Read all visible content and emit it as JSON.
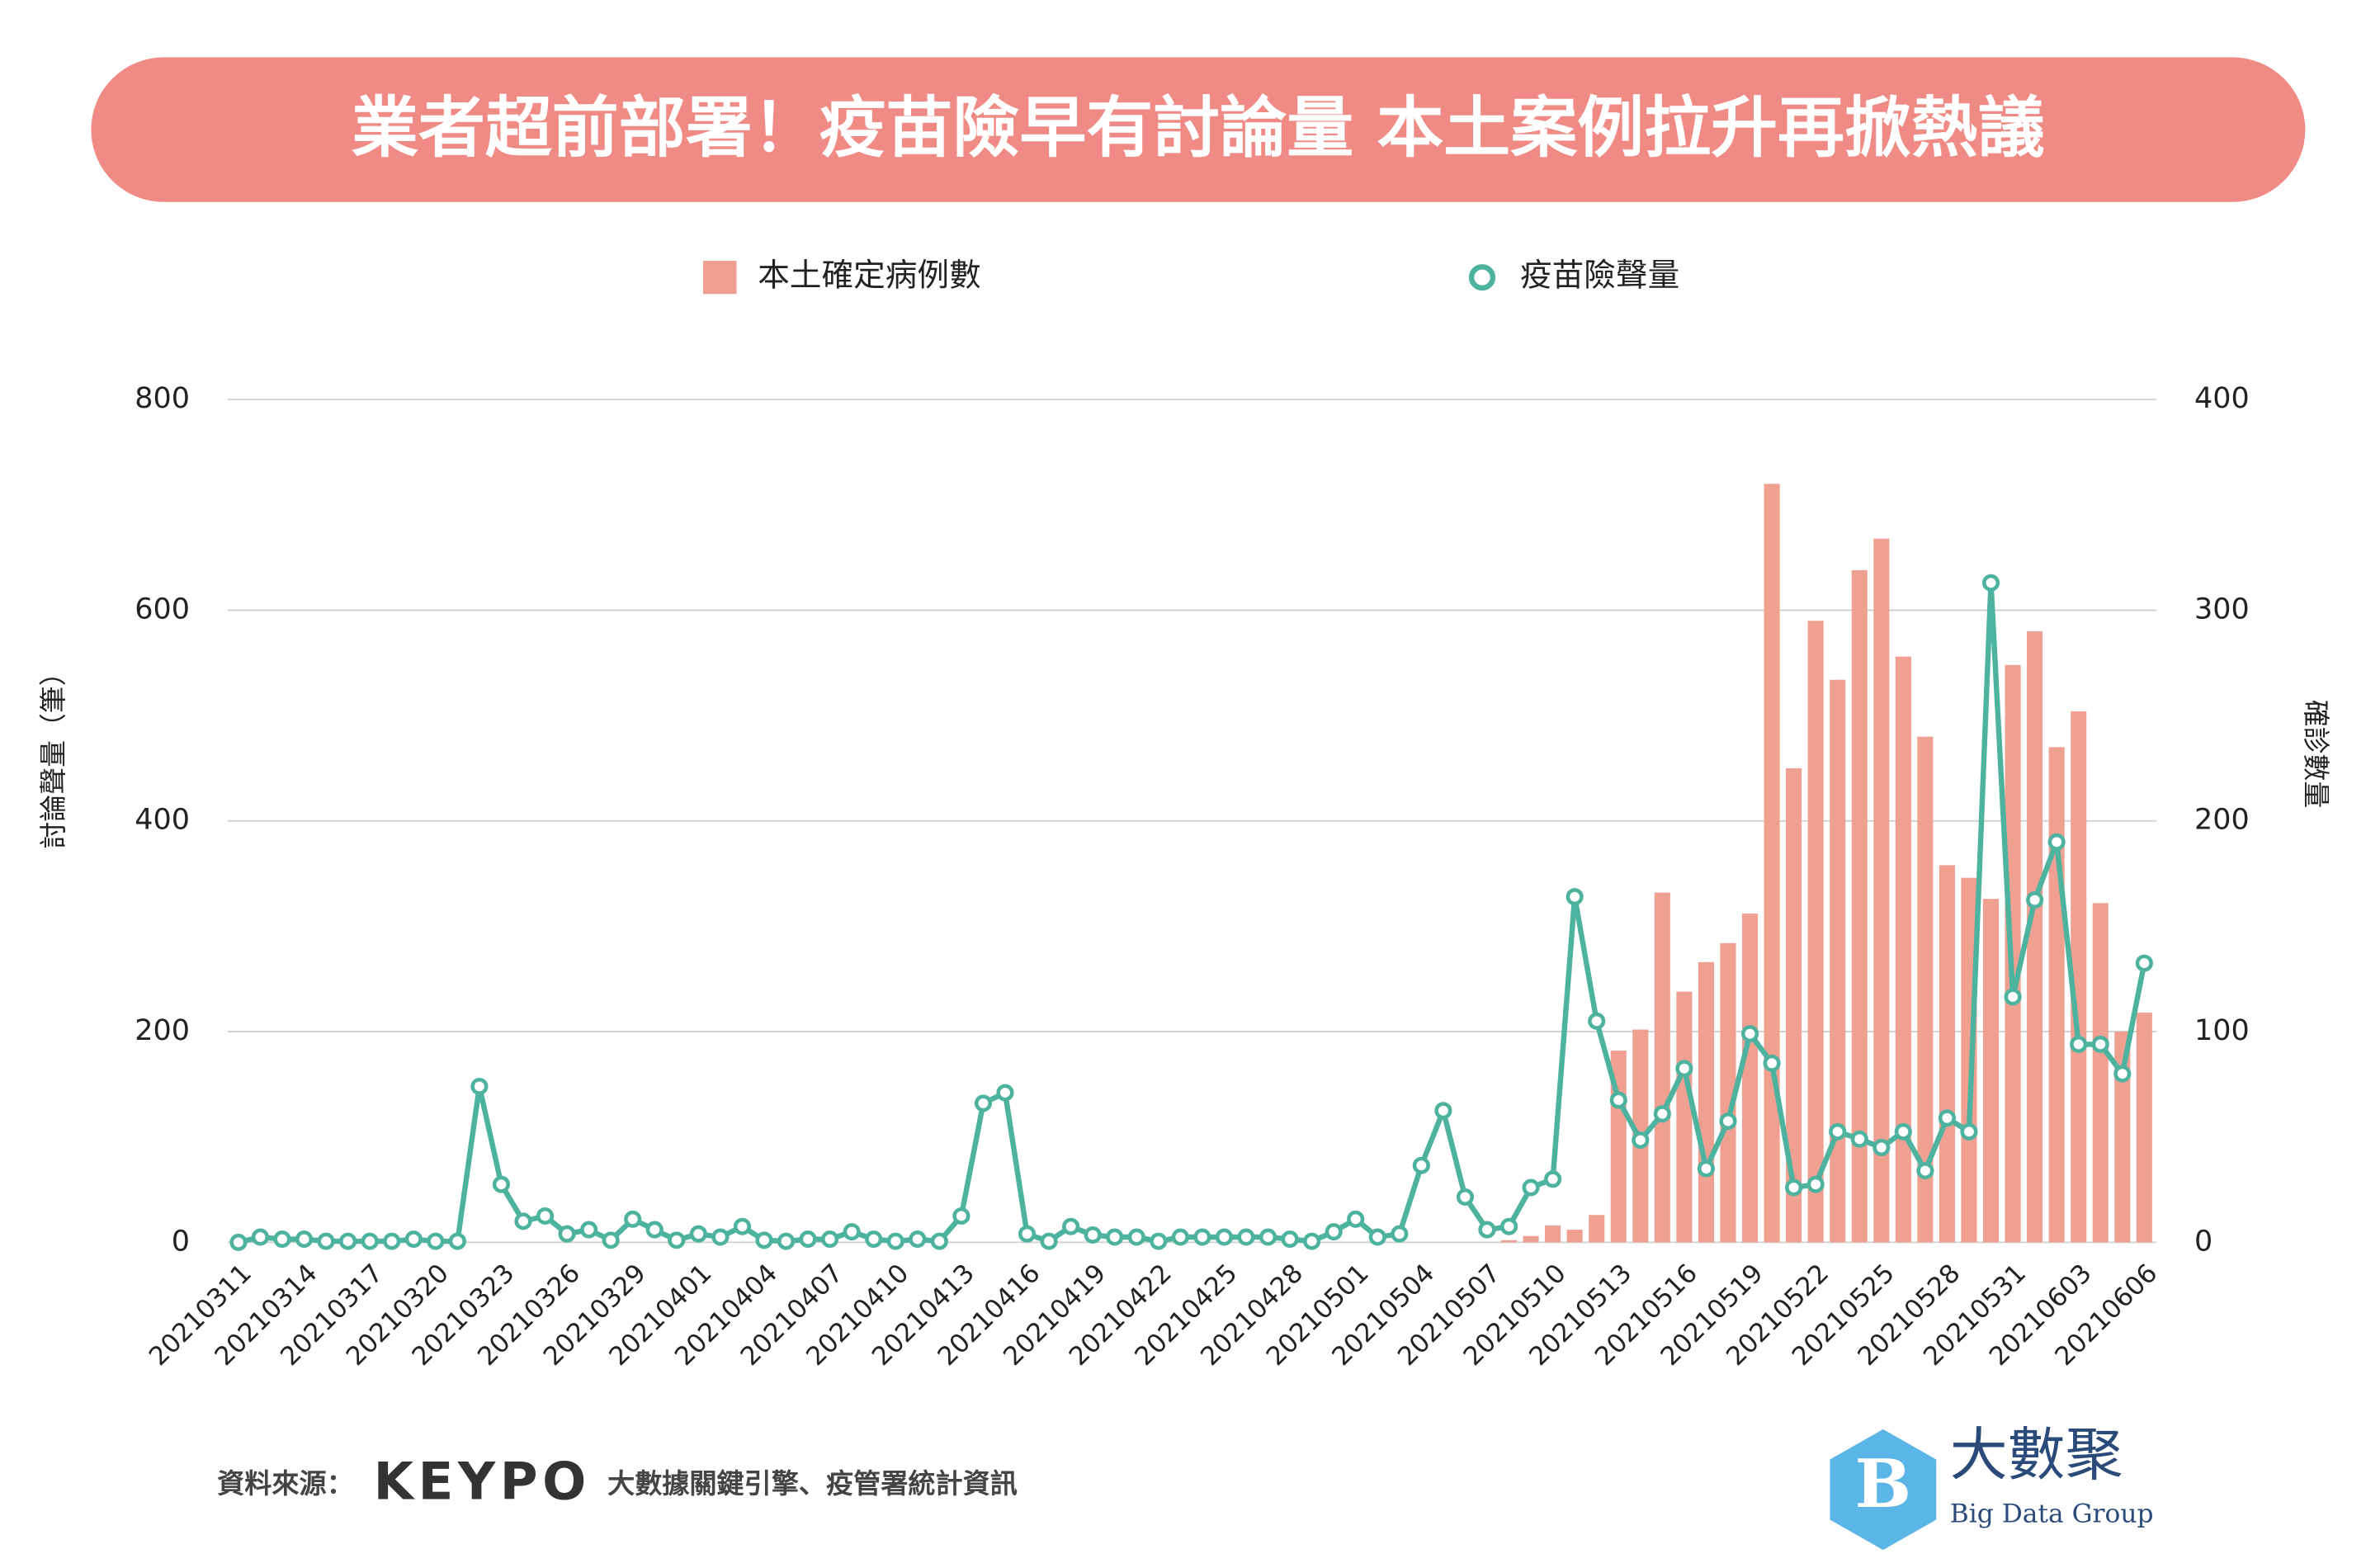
{
  "chart_data": {
    "type": "bar-line",
    "title": "業者超前部署！疫苗險早有討論量 本土案例拉升再掀熱議",
    "y_label": "討論聲量（筆）",
    "y2_label": "確診數量",
    "source_label": "資料來源：",
    "source_brand": "KEYPO",
    "source_text": "大數據關鍵引擎、疫管署統計資訊",
    "logo_name": "大數聚",
    "logo_subtitle": "Big Data Group",
    "legend_position": "top",
    "grid": true,
    "categories": [
      "20210311",
      null,
      null,
      "20210314",
      null,
      null,
      "20210317",
      null,
      null,
      "20210320",
      null,
      null,
      "20210323",
      null,
      null,
      "20210326",
      null,
      null,
      "20210329",
      null,
      null,
      "20210401",
      null,
      null,
      "20210404",
      null,
      null,
      "20210407",
      null,
      null,
      "20210410",
      null,
      null,
      "20210413",
      null,
      null,
      "20210416",
      null,
      null,
      "20210419",
      null,
      null,
      "20210422",
      null,
      null,
      "20210425",
      null,
      null,
      "20210428",
      null,
      null,
      "20210501",
      null,
      null,
      "20210504",
      null,
      null,
      "20210507",
      null,
      null,
      "20210510",
      null,
      null,
      "20210513",
      null,
      null,
      "20210516",
      null,
      null,
      "20210519",
      null,
      null,
      "20210522",
      null,
      null,
      "20210525",
      null,
      null,
      "20210528",
      null,
      null,
      "20210531",
      null,
      null,
      "20210603",
      null,
      null,
      "20210606"
    ],
    "series": [
      {
        "name": "本土確定病例數",
        "type": "bar",
        "axis": "y2",
        "color": "#f0a091",
        "values": [
          0,
          0,
          0,
          0,
          0,
          0,
          0,
          0,
          0,
          0,
          0,
          0,
          0,
          0,
          0,
          0,
          0,
          0,
          0,
          0,
          0,
          0,
          0,
          0,
          0,
          0,
          0,
          0,
          0,
          0,
          0,
          0,
          0,
          0,
          0,
          0,
          0,
          0,
          0,
          0,
          0,
          0,
          0,
          0,
          0,
          0,
          0,
          0,
          0,
          0,
          0,
          0,
          0,
          0,
          0,
          0,
          0,
          0,
          1,
          3,
          8,
          6,
          13,
          91,
          101,
          166,
          119,
          133,
          142,
          156,
          360,
          225,
          295,
          267,
          319,
          334,
          278,
          240,
          179,
          173,
          163,
          274,
          290,
          235,
          252,
          161,
          100,
          109
        ]
      },
      {
        "name": "疫苗險聲量",
        "type": "line",
        "axis": "y",
        "color": "#4db39e",
        "values": [
          0,
          5,
          3,
          3,
          1,
          1,
          1,
          1,
          3,
          1,
          1,
          148,
          55,
          20,
          25,
          8,
          12,
          2,
          22,
          12,
          2,
          8,
          5,
          15,
          2,
          1,
          3,
          3,
          10,
          3,
          1,
          3,
          1,
          25,
          132,
          142,
          8,
          1,
          15,
          7,
          5,
          5,
          1,
          5,
          5,
          5,
          5,
          5,
          3,
          1,
          10,
          22,
          5,
          8,
          73,
          125,
          43,
          12,
          15,
          52,
          60,
          328,
          210,
          135,
          97,
          122,
          165,
          70,
          115,
          198,
          170,
          52,
          55,
          105,
          98,
          90,
          105,
          68,
          118,
          105,
          626,
          233,
          325,
          380,
          188,
          188,
          160,
          265
        ]
      }
    ],
    "ylim": [
      0,
      800
    ],
    "yticks": [
      0,
      200,
      400,
      600,
      800
    ],
    "y2lim": [
      0,
      400
    ],
    "y2ticks": [
      0,
      100,
      200,
      300,
      400
    ]
  }
}
